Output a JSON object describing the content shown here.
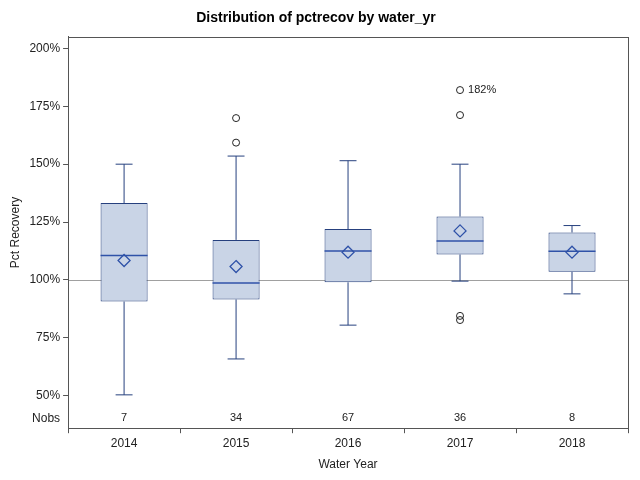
{
  "chart_data": {
    "type": "boxplot",
    "title": "Distribution of pctrecov by water_yr",
    "x_label": "Water Year",
    "y_label": "Pct Recovery",
    "categories": [
      "2014",
      "2015",
      "2016",
      "2017",
      "2018"
    ],
    "boxes": [
      {
        "min": 50.4,
        "q1": 90.7,
        "median": 110.6,
        "q3": 133.2,
        "max": 150,
        "mean": 108.4,
        "outliers": []
      },
      {
        "min": 65.9,
        "q1": 91.6,
        "median": 98.7,
        "q3": 117.3,
        "max": 153.5,
        "mean": 105.8,
        "outliers": [
          159.3,
          169.9
        ]
      },
      {
        "min": 80.5,
        "q1": 99,
        "median": 112.5,
        "q3": 122,
        "max": 151.5,
        "mean": 112,
        "outliers": []
      },
      {
        "min": 99.5,
        "q1": 111,
        "median": 116.8,
        "q3": 127.4,
        "max": 150,
        "mean": 121.2,
        "outliers": [
          82.7,
          84.5,
          171.2,
          182
        ]
      },
      {
        "min": 94,
        "q1": 103.5,
        "median": 112.4,
        "q3": 120.5,
        "max": 123.5,
        "mean": 112,
        "outliers": []
      }
    ],
    "nobs_label": "Nobs",
    "nobs": [
      7,
      34,
      67,
      36,
      8
    ],
    "reference_line": 100,
    "annotations": [
      {
        "category": "2017",
        "value": 182,
        "label": "182%"
      }
    ],
    "ylim": [
      36,
      205
    ],
    "yticks": [
      {
        "value": 50,
        "label": "50%"
      },
      {
        "value": 75,
        "label": "75%"
      },
      {
        "value": 100,
        "label": "100%"
      },
      {
        "value": 125,
        "label": "125%"
      },
      {
        "value": 150,
        "label": "150%"
      },
      {
        "value": 175,
        "label": "175%"
      },
      {
        "value": 200,
        "label": "200%"
      }
    ],
    "grid": false,
    "color": "#c9d4e6"
  }
}
